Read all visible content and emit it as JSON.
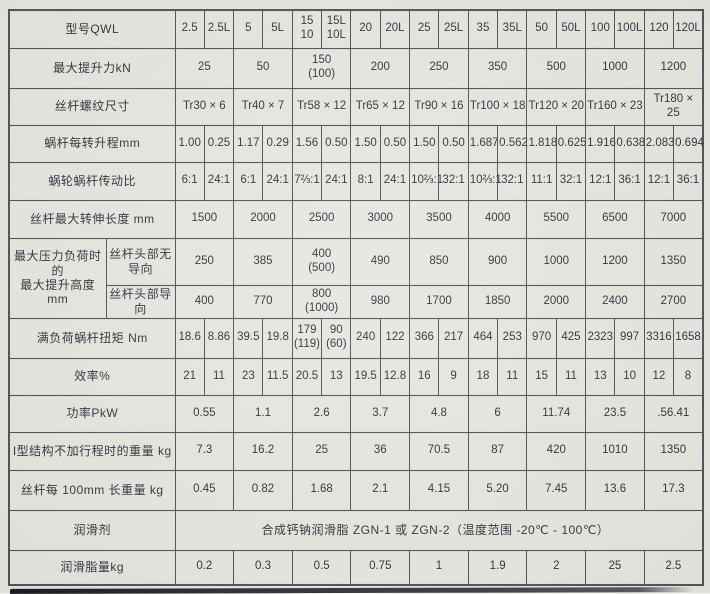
{
  "colors": {
    "paper": "#e9e8e2",
    "margin": "#f3f2ec",
    "line": "#4e4e58",
    "text": "#2d2d3a"
  },
  "table": {
    "rows": [
      {
        "name": "model",
        "label": "型号QWL",
        "span": 1,
        "cells": [
          "2.5",
          "2.5L",
          "5",
          "5L",
          "15\n10",
          "15L\n10L",
          "20",
          "20L",
          "25",
          "25L",
          "35",
          "35L",
          "50",
          "50L",
          "100",
          "100L",
          "120",
          "120L"
        ]
      },
      {
        "name": "max-lift-force",
        "label": "最大提升力kN",
        "span": 2,
        "cells": [
          "25",
          "50",
          "150\n(100)",
          "200",
          "250",
          "350",
          "500",
          "1000",
          "1200"
        ]
      },
      {
        "name": "screw-thread-size",
        "label": "丝杆螺纹尺寸",
        "span": 2,
        "cells": [
          "Tr30 × 6",
          "Tr40 × 7",
          "Tr58 × 12",
          "Tr65 × 12",
          "Tr90 × 16",
          "Tr100 × 18",
          "Tr120 × 20",
          "Tr160 × 23",
          "Tr180 × 25"
        ]
      },
      {
        "name": "worm-lift-per-rev",
        "label": "蜗杆每转升程mm",
        "span": 1,
        "cells": [
          "1.00",
          "0.25",
          "1.17",
          "0.29",
          "1.56",
          "0.50",
          "1.50",
          "0.50",
          "1.50",
          "0.50",
          "1.687",
          "0.562",
          "1.818",
          "0.625",
          "1.916",
          "0.638",
          "2.083",
          "0.694"
        ]
      },
      {
        "name": "worm-gear-ratio",
        "label": "蜗轮蜗杆传动比",
        "span": 1,
        "cells": [
          "6:1",
          "24:1",
          "6:1",
          "24:1",
          "7⅔:1",
          "24:1",
          "8:1",
          "24:1",
          "10⅔:1",
          "32:1",
          "10⅔:1",
          "32:1",
          "11:1",
          "32:1",
          "12:1",
          "36:1",
          "12:1",
          "36:1"
        ]
      },
      {
        "name": "max-screw-extend-length",
        "label": "丝杆最大转伸长度 mm",
        "span": 2,
        "cells": [
          "1500",
          "2000",
          "2500",
          "3000",
          "3500",
          "4000",
          "5500",
          "6500",
          "7000"
        ]
      },
      {
        "type": "group",
        "name": "max-lift-height-at-max-load",
        "label": "最大压力负荷时的\n最大提升高度mm",
        "subrows": [
          {
            "name": "screw-head-unguided",
            "label": "丝杆头部无导向",
            "span": 2,
            "cells": [
              "250",
              "385",
              "400\n(500)",
              "490",
              "850",
              "900",
              "1000",
              "1200",
              "1350"
            ]
          },
          {
            "name": "screw-head-guided",
            "label": "丝杆头部导向",
            "span": 2,
            "cells": [
              "400",
              "770",
              "800\n(1000)",
              "980",
              "1700",
              "1850",
              "2000",
              "2400",
              "2700"
            ]
          }
        ]
      },
      {
        "name": "full-load-worm-torque",
        "label": "满负荷蜗杆扭矩 Nm",
        "span": 1,
        "cells": [
          "18.6",
          "8.86",
          "39.5",
          "19.8",
          "179\n(119)",
          "90\n(60)",
          "240",
          "122",
          "366",
          "217",
          "464",
          "253",
          "970",
          "425",
          "2323",
          "997",
          "3316",
          "1658"
        ]
      },
      {
        "name": "efficiency",
        "label": "效率%",
        "span": 1,
        "cells": [
          "21",
          "11",
          "23",
          "11.5",
          "20.5",
          "13",
          "19.5",
          "12.8",
          "16",
          "9",
          "18",
          "11",
          "15",
          "11",
          "13",
          "10",
          "12",
          "8"
        ]
      },
      {
        "name": "power",
        "label": "功率PkW",
        "span": 2,
        "cells": [
          "0.55",
          "1.1",
          "2.6",
          "3.7",
          "4.8",
          "6",
          "11.74",
          "23.5",
          ".56.41"
        ]
      },
      {
        "name": "type1-weight-no-stroke",
        "label": "I型结构不加行程时的重量 kg",
        "span": 2,
        "cells": [
          "7.3",
          "16.2",
          "25",
          "36",
          "70.5",
          "87",
          "420",
          "1010",
          "1350"
        ]
      },
      {
        "name": "screw-weight-per-100mm",
        "label": "丝杆每 100mm 长重量 kg",
        "span": 2,
        "cells": [
          "0.45",
          "0.82",
          "1.68",
          "2.1",
          "4.15",
          "5.20",
          "7.45",
          "13.6",
          "17.3"
        ]
      },
      {
        "type": "full",
        "name": "lubricant",
        "label": "润滑剂",
        "text": "合成钙钠润滑脂 ZGN-1 或 ZGN-2（温度范围 -20℃ - 100℃）"
      },
      {
        "name": "grease-amount",
        "label": "润滑脂量kg",
        "span": 2,
        "cells": [
          "0.2",
          "0.3",
          "0.5",
          "0.75",
          "1",
          "1.9",
          "2",
          "25",
          "2.5"
        ]
      }
    ]
  }
}
